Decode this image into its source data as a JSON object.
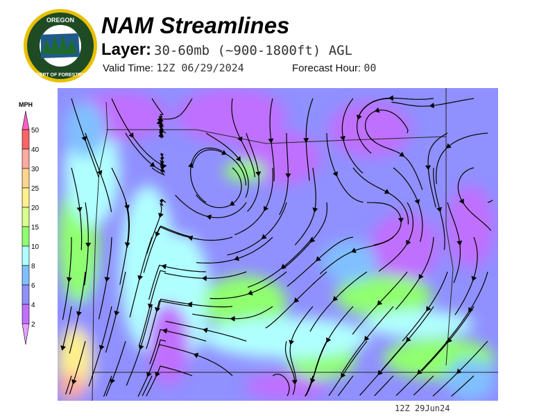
{
  "header": {
    "title": "NAM Streamlines",
    "layer_label": "Layer:",
    "layer_value": "30-60mb (~900-1800ft) AGL",
    "valid_label": "Valid Time:",
    "valid_value": "12Z 06/29/2024",
    "forecast_label": "Forecast Hour:",
    "forecast_value": "00"
  },
  "logo": {
    "text_top": "OREGON",
    "text_bottom": "DEPARTMENT OF FORESTRY"
  },
  "colorbar": {
    "unit": "MPH",
    "labels": [
      "50",
      "40",
      "30",
      "25",
      "20",
      "15",
      "10",
      "8",
      "6",
      "4",
      "2"
    ],
    "colors": [
      "#ff60c0",
      "#ff6464",
      "#ffaca0",
      "#ffd490",
      "#fff08c",
      "#d8ff90",
      "#90ff70",
      "#b0ffff",
      "#80c0ff",
      "#9090ff",
      "#c070ff",
      "#e8a0ff"
    ]
  },
  "map": {
    "variable": "wind speed streamlines",
    "region": "Oregon"
  },
  "footer": {
    "stamp": "12Z 29Jun24"
  }
}
